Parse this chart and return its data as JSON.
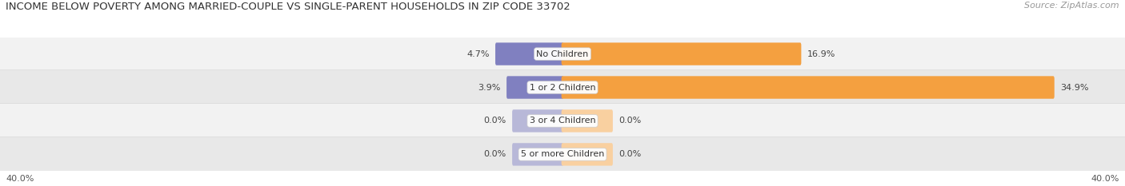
{
  "title": "INCOME BELOW POVERTY AMONG MARRIED-COUPLE VS SINGLE-PARENT HOUSEHOLDS IN ZIP CODE 33702",
  "source": "Source: ZipAtlas.com",
  "categories": [
    "No Children",
    "1 or 2 Children",
    "3 or 4 Children",
    "5 or more Children"
  ],
  "married_values": [
    4.7,
    3.9,
    0.0,
    0.0
  ],
  "single_values": [
    16.9,
    34.9,
    0.0,
    0.0
  ],
  "married_color": "#8080c0",
  "single_color": "#f4a040",
  "married_color_light": "#b8b8d8",
  "single_color_light": "#f9d0a0",
  "row_bg_even": "#f2f2f2",
  "row_bg_odd": "#e8e8e8",
  "axis_label_left": "40.0%",
  "axis_label_right": "40.0%",
  "x_max": 40.0,
  "title_fontsize": 9.5,
  "source_fontsize": 8,
  "label_fontsize": 8,
  "value_fontsize": 8,
  "bar_height": 0.52,
  "zero_stub": 3.5
}
